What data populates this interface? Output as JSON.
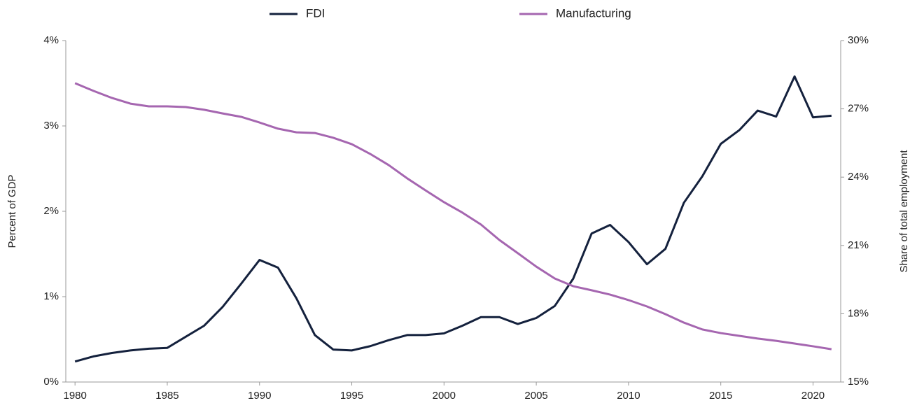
{
  "chart_data": {
    "type": "line",
    "x": [
      1980,
      1981,
      1982,
      1983,
      1984,
      1985,
      1986,
      1987,
      1988,
      1989,
      1990,
      1991,
      1992,
      1993,
      1994,
      1995,
      1996,
      1997,
      1998,
      1999,
      2000,
      2001,
      2002,
      2003,
      2004,
      2005,
      2006,
      2007,
      2008,
      2009,
      2010,
      2011,
      2012,
      2013,
      2014,
      2015,
      2016,
      2017,
      2018,
      2019,
      2020,
      2021
    ],
    "series": [
      {
        "name": "FDI",
        "color": "#14213d",
        "axis": "y",
        "values": [
          0.24,
          0.3,
          0.34,
          0.37,
          0.39,
          0.4,
          0.53,
          0.66,
          0.88,
          1.15,
          1.43,
          1.34,
          0.98,
          0.55,
          0.38,
          0.37,
          0.42,
          0.49,
          0.55,
          0.55,
          0.57,
          0.66,
          0.76,
          0.76,
          0.68,
          0.75,
          0.89,
          1.21,
          1.74,
          1.84,
          1.64,
          1.38,
          1.56,
          2.1,
          2.41,
          2.79,
          2.95,
          3.18,
          3.11,
          3.58,
          3.1,
          3.12
        ]
      },
      {
        "name": "Manufacturing",
        "color": "#a566b0",
        "axis": "y2",
        "values": [
          28.13,
          27.79,
          27.48,
          27.23,
          27.11,
          27.11,
          27.08,
          26.96,
          26.8,
          26.65,
          26.4,
          26.13,
          25.97,
          25.94,
          25.73,
          25.45,
          25.02,
          24.53,
          23.95,
          23.42,
          22.9,
          22.44,
          21.92,
          21.24,
          20.66,
          20.07,
          19.55,
          19.21,
          19.03,
          18.84,
          18.6,
          18.32,
          17.98,
          17.61,
          17.31,
          17.15,
          17.03,
          16.91,
          16.81,
          16.69,
          16.57,
          16.44
        ]
      }
    ],
    "y_label": "Percent of GDP",
    "y2_label": "Share of total employment",
    "xlim": [
      1979.5,
      2021.5
    ],
    "xticks": [
      1980,
      1985,
      1990,
      1995,
      2000,
      2005,
      2010,
      2015,
      2020
    ],
    "ylim": [
      0,
      4
    ],
    "yticks": [
      {
        "value": 0,
        "label": "0%"
      },
      {
        "value": 1,
        "label": "1%"
      },
      {
        "value": 2,
        "label": "2%"
      },
      {
        "value": 3,
        "label": "3%"
      },
      {
        "value": 4,
        "label": "4%"
      }
    ],
    "y2lim": [
      15,
      30
    ],
    "y2ticks": [
      {
        "value": 15,
        "label": "15%"
      },
      {
        "value": 18,
        "label": "18%"
      },
      {
        "value": 21,
        "label": "21%"
      },
      {
        "value": 24,
        "label": "24%"
      },
      {
        "value": 27,
        "label": "27%"
      },
      {
        "value": 30,
        "label": "30%"
      }
    ]
  }
}
